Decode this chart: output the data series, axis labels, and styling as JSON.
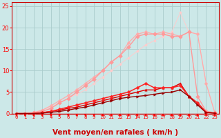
{
  "title": "",
  "xlabel": "Vent moyen/en rafales ( km/h )",
  "bg_color": "#cce8e8",
  "grid_color": "#aacccc",
  "xlim": [
    -0.5,
    23.5
  ],
  "ylim": [
    0,
    26
  ],
  "yticks": [
    0,
    5,
    10,
    15,
    20,
    25
  ],
  "xticks": [
    0,
    1,
    2,
    3,
    4,
    5,
    6,
    7,
    8,
    9,
    10,
    11,
    12,
    13,
    14,
    15,
    16,
    17,
    18,
    19,
    20,
    21,
    22,
    23
  ],
  "series": [
    {
      "x": [
        0,
        1,
        2,
        3,
        4,
        5,
        6,
        7,
        8,
        9,
        10,
        11,
        12,
        13,
        14,
        15,
        16,
        17,
        18,
        19,
        20,
        21,
        22,
        23
      ],
      "y": [
        0,
        0,
        0.3,
        0.8,
        1.5,
        2.5,
        3.5,
        4.5,
        5.5,
        7.0,
        8.5,
        10.0,
        11.5,
        13.0,
        14.5,
        16.0,
        17.0,
        18.0,
        19.0,
        23.5,
        19.0,
        18.5,
        7.0,
        0.2
      ],
      "color": "#ffcccc",
      "marker": "D",
      "markersize": 2.0,
      "linewidth": 0.7,
      "zorder": 2
    },
    {
      "x": [
        0,
        1,
        2,
        3,
        4,
        5,
        6,
        7,
        8,
        9,
        10,
        11,
        12,
        13,
        14,
        15,
        16,
        17,
        18,
        19,
        20,
        21,
        22,
        23
      ],
      "y": [
        0,
        0,
        0.2,
        0.8,
        1.8,
        3.0,
        4.2,
        5.5,
        7.0,
        8.5,
        10.0,
        12.0,
        13.5,
        16.5,
        18.5,
        19.0,
        18.5,
        19.0,
        18.5,
        18.0,
        19.0,
        18.5,
        7.0,
        0.2
      ],
      "color": "#ffaaaa",
      "marker": "D",
      "markersize": 2.5,
      "linewidth": 0.9,
      "zorder": 3
    },
    {
      "x": [
        0,
        1,
        2,
        3,
        4,
        5,
        6,
        7,
        8,
        9,
        10,
        11,
        12,
        13,
        14,
        15,
        16,
        17,
        18,
        19,
        20,
        21,
        22,
        23
      ],
      "y": [
        0,
        0,
        0.2,
        0.5,
        1.2,
        2.5,
        3.5,
        5.0,
        6.5,
        8.0,
        10.0,
        12.0,
        13.5,
        15.5,
        18.0,
        18.5,
        18.5,
        18.5,
        18.0,
        18.0,
        19.0,
        4.0,
        0.5,
        0.2
      ],
      "color": "#ff9999",
      "marker": "D",
      "markersize": 3,
      "linewidth": 1.0,
      "zorder": 4
    },
    {
      "x": [
        0,
        1,
        2,
        3,
        4,
        5,
        6,
        7,
        8,
        9,
        10,
        11,
        12,
        13,
        14,
        15,
        16,
        17,
        18,
        19,
        20,
        21,
        22,
        23
      ],
      "y": [
        0,
        0,
        0,
        0.2,
        0.5,
        0.8,
        1.2,
        1.5,
        2.0,
        2.5,
        3.0,
        3.5,
        4.0,
        4.5,
        5.0,
        5.5,
        5.5,
        6.0,
        6.0,
        7.0,
        4.0,
        2.5,
        0.3,
        0.1
      ],
      "color": "#dd0000",
      "marker": "^",
      "markersize": 2.5,
      "linewidth": 1.0,
      "zorder": 6
    },
    {
      "x": [
        0,
        1,
        2,
        3,
        4,
        5,
        6,
        7,
        8,
        9,
        10,
        11,
        12,
        13,
        14,
        15,
        16,
        17,
        18,
        19,
        20,
        21,
        22,
        23
      ],
      "y": [
        0,
        0,
        0,
        0.2,
        0.5,
        1.0,
        1.5,
        2.0,
        2.5,
        3.0,
        3.5,
        4.0,
        4.5,
        5.0,
        6.0,
        7.0,
        6.0,
        6.0,
        6.0,
        6.5,
        4.0,
        2.5,
        0.3,
        0.1
      ],
      "color": "#ff2222",
      "marker": "D",
      "markersize": 2.5,
      "linewidth": 1.1,
      "zorder": 7
    },
    {
      "x": [
        0,
        1,
        2,
        3,
        4,
        5,
        6,
        7,
        8,
        9,
        10,
        11,
        12,
        13,
        14,
        15,
        16,
        17,
        18,
        19,
        20,
        21,
        22,
        23
      ],
      "y": [
        0,
        0,
        0,
        0.1,
        0.3,
        0.5,
        0.8,
        1.2,
        1.5,
        2.0,
        2.5,
        3.0,
        3.5,
        3.8,
        4.0,
        4.2,
        4.5,
        4.8,
        5.0,
        5.5,
        4.0,
        2.0,
        0.2,
        0.1
      ],
      "color": "#990000",
      "marker": ">",
      "markersize": 2.5,
      "linewidth": 1.0,
      "zorder": 8
    }
  ],
  "arrow_color": "#ff0000",
  "axis_color": "#cc0000",
  "tick_label_color": "#ff0000",
  "xlabel_color": "#cc0000",
  "xlabel_fontsize": 7.5,
  "tick_fontsize_x": 5.0,
  "tick_fontsize_y": 6.0
}
